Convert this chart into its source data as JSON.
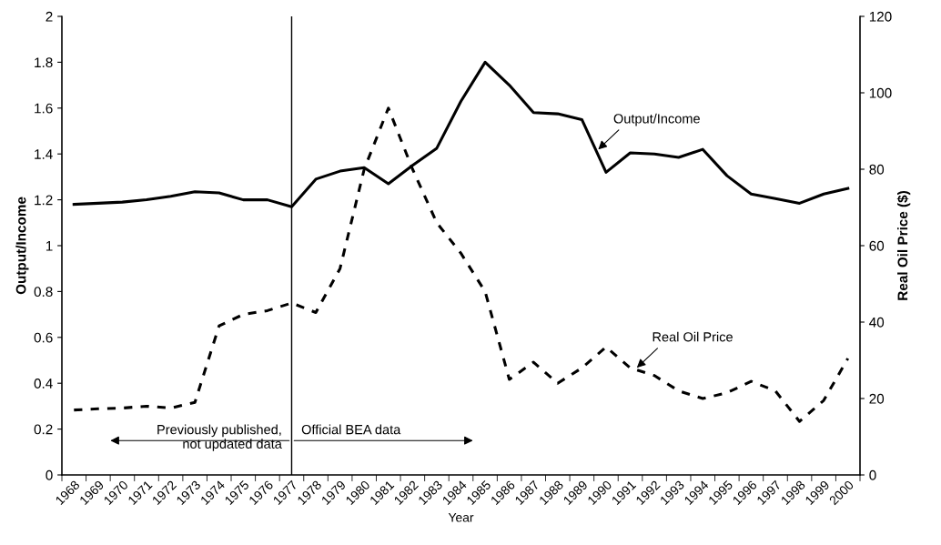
{
  "chart_data": {
    "type": "line",
    "xlabel": "Year",
    "ylabel": "Output/Income",
    "y2label": "Real Oil Price ($)",
    "categories": [
      "1968",
      "1969",
      "1970",
      "1971",
      "1972",
      "1973",
      "1974",
      "1975",
      "1976",
      "1977",
      "1978",
      "1979",
      "1980",
      "1981",
      "1982",
      "1983",
      "1984",
      "1985",
      "1986",
      "1987",
      "1988",
      "1989",
      "1990",
      "1991",
      "1992",
      "1993",
      "1994",
      "1995",
      "1996",
      "1997",
      "1998",
      "1999",
      "2000"
    ],
    "series": [
      {
        "name": "Output/Income",
        "color": "#000000",
        "line_style": "solid",
        "values": [
          1.18,
          1.185,
          1.19,
          1.2,
          1.215,
          1.235,
          1.23,
          1.2,
          1.2,
          1.17,
          1.29,
          1.325,
          1.34,
          1.27,
          1.35,
          1.425,
          1.63,
          1.8,
          1.7,
          1.58,
          1.575,
          1.55,
          1.32,
          1.405,
          1.4,
          1.385,
          1.42,
          1.305,
          1.225,
          1.205,
          1.185,
          1.225,
          1.25
        ]
      },
      {
        "name": "Real Oil Price",
        "color": "#000000",
        "line_style": "dashed",
        "axis": "y2",
        "values": [
          17,
          17.3,
          17.5,
          18,
          17.5,
          19,
          39,
          42,
          43,
          45,
          42.5,
          54,
          80,
          96,
          80,
          66,
          58,
          48,
          25,
          29.5,
          24,
          28,
          33.5,
          28,
          26,
          22,
          20,
          21.5,
          24.5,
          22,
          14,
          19.5,
          30.5
        ]
      }
    ],
    "ylim": [
      0,
      2
    ],
    "yticks": [
      0,
      0.2,
      0.4,
      0.6,
      0.8,
      1,
      1.2,
      1.4,
      1.6,
      1.8,
      2
    ],
    "y2lim": [
      0,
      120
    ],
    "y2ticks": [
      0,
      20,
      40,
      60,
      80,
      100,
      120
    ],
    "ref_lines": [
      {
        "axis": "x",
        "value": "1977",
        "color": "#000000",
        "line_style": "solid"
      }
    ],
    "annotations": [
      "Previously published,\nnot updated data",
      "Official BEA data"
    ],
    "grid": false,
    "legend": false,
    "marker": "none"
  }
}
